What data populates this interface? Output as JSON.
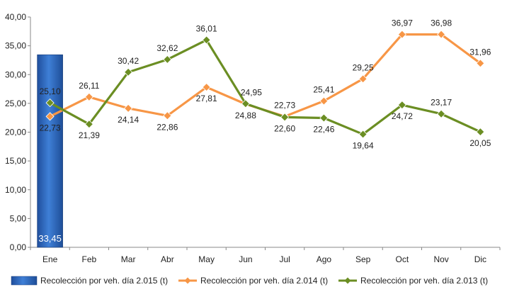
{
  "chart_data": {
    "type": "line",
    "categories": [
      "Ene",
      "Feb",
      "Mar",
      "Abr",
      "May",
      "Jun",
      "Jul",
      "Ago",
      "Sep",
      "Oct",
      "Nov",
      "Dic"
    ],
    "ylim": [
      0,
      40
    ],
    "y_ticks": [
      "0,00",
      "5,00",
      "10,00",
      "15,00",
      "20,00",
      "25,00",
      "30,00",
      "35,00",
      "40,00"
    ],
    "grid": false,
    "legend_position": "bottom",
    "series": [
      {
        "name": "Recolección por veh. día 2.015 (t)",
        "render": "bar",
        "color": "#2E6BC6",
        "values": [
          33.45,
          null,
          null,
          null,
          null,
          null,
          null,
          null,
          null,
          null,
          null,
          null
        ],
        "labels": [
          "33,45",
          "",
          "",
          "",
          "",
          "",
          "",
          "",
          "",
          "",
          "",
          ""
        ]
      },
      {
        "name": "Recolección por veh. día 2.014 (t)",
        "render": "line",
        "color": "#F79646",
        "values": [
          22.73,
          26.11,
          24.14,
          22.86,
          27.81,
          24.88,
          22.73,
          25.41,
          29.25,
          36.97,
          36.98,
          31.96
        ],
        "labels": [
          "22,73",
          "26,11",
          "24,14",
          "22,86",
          "27,81",
          "24,88",
          "22,73",
          "25,41",
          "29,25",
          "36,97",
          "36,98",
          "31,96"
        ]
      },
      {
        "name": "Recolección por veh. día 2.013 (t)",
        "render": "line",
        "color": "#6B8E23",
        "values": [
          25.1,
          21.39,
          30.42,
          32.62,
          36.01,
          24.95,
          22.6,
          22.46,
          19.64,
          24.72,
          23.17,
          20.05
        ],
        "labels": [
          "25,10",
          "21,39",
          "30,42",
          "32,62",
          "36,01",
          "24,95",
          "22,60",
          "22,46",
          "19,64",
          "24,72",
          "23,17",
          "20,05"
        ]
      }
    ]
  }
}
